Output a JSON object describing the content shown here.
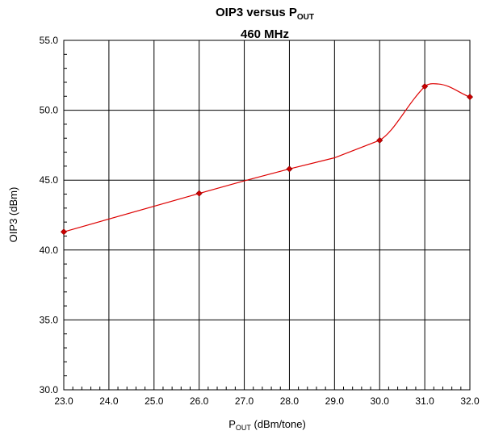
{
  "chart_data": {
    "type": "line",
    "title": {
      "line1_main": "OIP3 versus P",
      "line1_sub": "OUT",
      "line2": "460 MHz"
    },
    "xlabel": {
      "main": "P",
      "sub": "OUT",
      "rest": " (dBm/tone)"
    },
    "ylabel": "OIP3 (dBm)",
    "x_categories": [
      "23.0",
      "24.0",
      "25.0",
      "26.0",
      "27.0",
      "28.0",
      "29.0",
      "30.0",
      "31.0",
      "32.0"
    ],
    "y_ticks": [
      "30.0",
      "35.0",
      "40.0",
      "45.0",
      "50.0",
      "55.0"
    ],
    "ylim": [
      30,
      55
    ],
    "grid": true,
    "series": [
      {
        "color": "#dd0000",
        "marker_color": "#cc0000",
        "points": [
          {
            "x": "23.0",
            "y": 41.3
          },
          {
            "x": "26.0",
            "y": 44.05
          },
          {
            "x": "28.0",
            "y": 45.8
          },
          {
            "x": "30.0",
            "y": 47.85
          },
          {
            "x": "31.0",
            "y": 51.7
          },
          {
            "x": "32.0",
            "y": 50.95
          }
        ],
        "curve_path_points": [
          {
            "x": "23.0",
            "y": 41.3
          },
          {
            "x": "26.0",
            "y": 44.05
          },
          {
            "x": "27.0",
            "y": 44.95
          },
          {
            "x": "28.0",
            "y": 45.8
          },
          {
            "x": "29.0",
            "y": 46.6
          },
          {
            "x": "30.0",
            "y": 47.85
          }
        ]
      }
    ]
  }
}
